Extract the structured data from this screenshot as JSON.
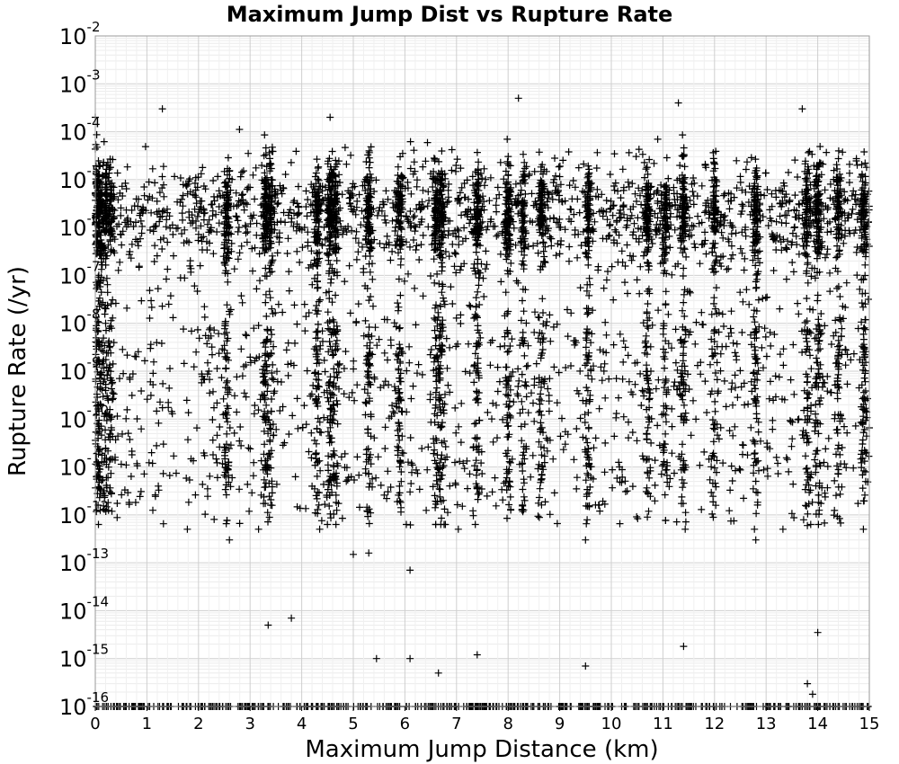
{
  "chart_data": {
    "type": "scatter",
    "title": "Maximum Jump Dist vs Rupture Rate",
    "xlabel": "Maximum Jump Distance (km)",
    "ylabel": "Rupture Rate (/yr)",
    "xlim": [
      0,
      15
    ],
    "ylim_log10": [
      -16,
      -2
    ],
    "y_scale": "log",
    "grid": true,
    "marker": "+",
    "marker_color": "#000000",
    "x_ticks": [
      "0",
      "1",
      "2",
      "3",
      "4",
      "5",
      "6",
      "7",
      "8",
      "9",
      "10",
      "11",
      "12",
      "13",
      "14",
      "15"
    ],
    "y_ticks": [
      {
        "base": "10",
        "exp": "-2"
      },
      {
        "base": "10",
        "exp": "-3"
      },
      {
        "base": "10",
        "exp": "-4"
      },
      {
        "base": "10",
        "exp": "-5"
      },
      {
        "base": "10",
        "exp": "-6"
      },
      {
        "base": "10",
        "exp": "-7"
      },
      {
        "base": "10",
        "exp": "-8"
      },
      {
        "base": "10",
        "exp": "-9"
      },
      {
        "base": "10",
        "exp": "-10"
      },
      {
        "base": "10",
        "exp": "-11"
      },
      {
        "base": "10",
        "exp": "-12"
      },
      {
        "base": "10",
        "exp": "-13"
      },
      {
        "base": "10",
        "exp": "-14"
      },
      {
        "base": "10",
        "exp": "-15"
      },
      {
        "base": "10",
        "exp": "-16"
      }
    ],
    "column_clusters_x": [
      0.0,
      0.05,
      0.1,
      0.2,
      0.3,
      2.55,
      3.3,
      3.4,
      4.3,
      4.55,
      4.65,
      5.3,
      5.9,
      6.6,
      6.7,
      7.4,
      8.0,
      8.3,
      8.65,
      9.55,
      10.7,
      11.05,
      11.4,
      12.0,
      12.8,
      13.8,
      14.0,
      14.4,
      14.9
    ],
    "sample_points": [
      {
        "x": 0.0,
        "y": 0.0002
      },
      {
        "x": 0.0,
        "y": 5e-06
      },
      {
        "x": 0.05,
        "y": 1e-05
      },
      {
        "x": 0.1,
        "y": 3e-06
      },
      {
        "x": 0.2,
        "y": 1e-08
      },
      {
        "x": 0.3,
        "y": 1e-10
      },
      {
        "x": 1.3,
        "y": 0.0003
      },
      {
        "x": 2.6,
        "y": 3e-13
      },
      {
        "x": 3.35,
        "y": 5e-15
      },
      {
        "x": 3.8,
        "y": 7e-15
      },
      {
        "x": 4.55,
        "y": 0.0002
      },
      {
        "x": 5.0,
        "y": 1.5e-13
      },
      {
        "x": 5.45,
        "y": 1e-15
      },
      {
        "x": 5.3,
        "y": 1.6e-13
      },
      {
        "x": 6.1,
        "y": 7e-14
      },
      {
        "x": 6.1,
        "y": 1e-15
      },
      {
        "x": 6.65,
        "y": 5e-16
      },
      {
        "x": 7.4,
        "y": 1.2e-15
      },
      {
        "x": 8.2,
        "y": 0.0005
      },
      {
        "x": 9.5,
        "y": 3e-13
      },
      {
        "x": 9.5,
        "y": 7e-16
      },
      {
        "x": 11.4,
        "y": 1.8e-15
      },
      {
        "x": 11.3,
        "y": 0.0004
      },
      {
        "x": 12.8,
        "y": 3e-13
      },
      {
        "x": 13.7,
        "y": 0.0003
      },
      {
        "x": 13.8,
        "y": 6e-13
      },
      {
        "x": 13.8,
        "y": 3e-16
      },
      {
        "x": 13.9,
        "y": 1.8e-16
      },
      {
        "x": 14.0,
        "y": 3.5e-15
      }
    ]
  }
}
